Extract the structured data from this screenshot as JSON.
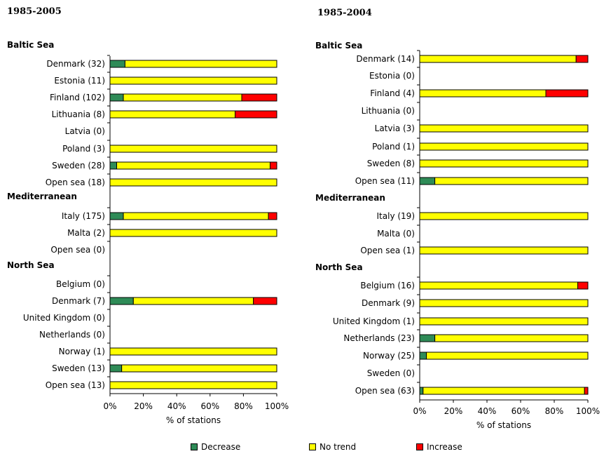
{
  "colors": {
    "decrease": "#2e8b57",
    "no_trend": "#ffff00",
    "increase": "#ff0000",
    "outline": "#000000"
  },
  "legend": {
    "decrease": "Decrease",
    "no_trend": "No trend",
    "increase": "Increase"
  },
  "chart_data": [
    {
      "type": "bar",
      "orientation": "horizontal",
      "stacked": true,
      "title": "1985-2005",
      "xlabel": "% of stations",
      "xlim": [
        0,
        100
      ],
      "xticks": [
        "0%",
        "20%",
        "40%",
        "60%",
        "80%",
        "100%"
      ],
      "groups": [
        {
          "name": "Baltic Sea",
          "rows": [
            {
              "label": "Denmark (32)",
              "decrease": 9,
              "no_trend": 91,
              "increase": 0
            },
            {
              "label": "Estonia (11)",
              "decrease": 0,
              "no_trend": 100,
              "increase": 0
            },
            {
              "label": "Finland (102)",
              "decrease": 8,
              "no_trend": 71,
              "increase": 21
            },
            {
              "label": "Lithuania (8)",
              "decrease": 0,
              "no_trend": 75,
              "increase": 25
            },
            {
              "label": "Latvia (0)",
              "decrease": 0,
              "no_trend": 0,
              "increase": 0
            },
            {
              "label": "Poland (3)",
              "decrease": 0,
              "no_trend": 100,
              "increase": 0
            },
            {
              "label": "Sweden (28)",
              "decrease": 4,
              "no_trend": 92,
              "increase": 4
            },
            {
              "label": "Open sea (18)",
              "decrease": 0,
              "no_trend": 100,
              "increase": 0
            }
          ]
        },
        {
          "name": "Mediterranean",
          "rows": [
            {
              "label": "Italy (175)",
              "decrease": 8,
              "no_trend": 87,
              "increase": 5
            },
            {
              "label": "Malta (2)",
              "decrease": 0,
              "no_trend": 100,
              "increase": 0
            },
            {
              "label": "Open sea (0)",
              "decrease": 0,
              "no_trend": 0,
              "increase": 0
            }
          ]
        },
        {
          "name": "North Sea",
          "rows": [
            {
              "label": "Belgium (0)",
              "decrease": 0,
              "no_trend": 0,
              "increase": 0
            },
            {
              "label": "Denmark (7)",
              "decrease": 14,
              "no_trend": 72,
              "increase": 14
            },
            {
              "label": "United Kingdom (0)",
              "decrease": 0,
              "no_trend": 0,
              "increase": 0
            },
            {
              "label": "Netherlands (0)",
              "decrease": 0,
              "no_trend": 0,
              "increase": 0
            },
            {
              "label": "Norway (1)",
              "decrease": 0,
              "no_trend": 100,
              "increase": 0
            },
            {
              "label": "Sweden (13)",
              "decrease": 7,
              "no_trend": 93,
              "increase": 0
            },
            {
              "label": "Open sea (13)",
              "decrease": 0,
              "no_trend": 100,
              "increase": 0
            }
          ]
        }
      ]
    },
    {
      "type": "bar",
      "orientation": "horizontal",
      "stacked": true,
      "title": "1985-2004",
      "xlabel": "% of stations",
      "xlim": [
        0,
        100
      ],
      "xticks": [
        "0%",
        "20%",
        "40%",
        "60%",
        "80%",
        "100%"
      ],
      "groups": [
        {
          "name": "Baltic Sea",
          "rows": [
            {
              "label": "Denmark (14)",
              "decrease": 0,
              "no_trend": 93,
              "increase": 7
            },
            {
              "label": "Estonia (0)",
              "decrease": 0,
              "no_trend": 0,
              "increase": 0
            },
            {
              "label": "Finland (4)",
              "decrease": 0,
              "no_trend": 75,
              "increase": 25
            },
            {
              "label": "Lithuania (0)",
              "decrease": 0,
              "no_trend": 0,
              "increase": 0
            },
            {
              "label": "Latvia (3)",
              "decrease": 0,
              "no_trend": 100,
              "increase": 0
            },
            {
              "label": "Poland (1)",
              "decrease": 0,
              "no_trend": 100,
              "increase": 0
            },
            {
              "label": "Sweden (8)",
              "decrease": 0,
              "no_trend": 100,
              "increase": 0
            },
            {
              "label": "Open sea (11)",
              "decrease": 9,
              "no_trend": 91,
              "increase": 0
            }
          ]
        },
        {
          "name": "Mediterranean",
          "rows": [
            {
              "label": "Italy (19)",
              "decrease": 0,
              "no_trend": 100,
              "increase": 0
            },
            {
              "label": "Malta (0)",
              "decrease": 0,
              "no_trend": 0,
              "increase": 0
            },
            {
              "label": "Open sea (1)",
              "decrease": 0,
              "no_trend": 100,
              "increase": 0
            }
          ]
        },
        {
          "name": "North Sea",
          "rows": [
            {
              "label": "Belgium (16)",
              "decrease": 0,
              "no_trend": 94,
              "increase": 6
            },
            {
              "label": "Denmark (9)",
              "decrease": 0,
              "no_trend": 100,
              "increase": 0
            },
            {
              "label": "United Kingdom (1)",
              "decrease": 0,
              "no_trend": 100,
              "increase": 0
            },
            {
              "label": "Netherlands (23)",
              "decrease": 9,
              "no_trend": 91,
              "increase": 0
            },
            {
              "label": "Norway (25)",
              "decrease": 4,
              "no_trend": 96,
              "increase": 0
            },
            {
              "label": "Sweden (0)",
              "decrease": 0,
              "no_trend": 0,
              "increase": 0
            },
            {
              "label": "Open sea (63)",
              "decrease": 2,
              "no_trend": 96,
              "increase": 2
            }
          ]
        }
      ]
    }
  ]
}
